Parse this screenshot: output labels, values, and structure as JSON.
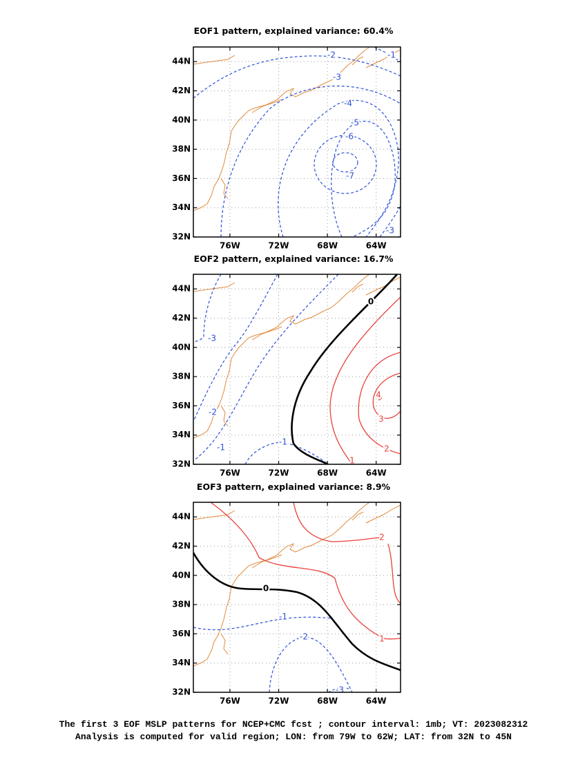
{
  "panels": [
    {
      "title": "EOF1 pattern, explained variance: 60.4%",
      "contours": [
        {
          "value": -1
        },
        {
          "value": -2
        },
        {
          "value": -3
        },
        {
          "value": -4
        },
        {
          "value": -5
        },
        {
          "value": -6
        },
        {
          "value": -7
        }
      ]
    },
    {
      "title": "EOF2 pattern, explained variance: 16.7%",
      "contours": [
        {
          "value": -3
        },
        {
          "value": -2
        },
        {
          "value": -1
        },
        {
          "value": 0
        },
        {
          "value": 1
        },
        {
          "value": 2
        },
        {
          "value": 3
        },
        {
          "value": 4
        }
      ]
    },
    {
      "title": "EOF3 pattern, explained variance: 8.9%",
      "contours": [
        {
          "value": -3
        },
        {
          "value": -2
        },
        {
          "value": -1
        },
        {
          "value": 0
        },
        {
          "value": 1
        },
        {
          "value": 2
        }
      ]
    }
  ],
  "lon_range": [
    -79,
    -62
  ],
  "lat_range": [
    32,
    45
  ],
  "lon_ticks": [
    {
      "value": -76,
      "label": "76W"
    },
    {
      "value": -72,
      "label": "72W"
    },
    {
      "value": -68,
      "label": "68W"
    },
    {
      "value": -64,
      "label": "64W"
    }
  ],
  "lat_ticks": [
    {
      "value": 32,
      "label": "32N"
    },
    {
      "value": 34,
      "label": "34N"
    },
    {
      "value": 36,
      "label": "36N"
    },
    {
      "value": 38,
      "label": "38N"
    },
    {
      "value": 40,
      "label": "40N"
    },
    {
      "value": 42,
      "label": "42N"
    },
    {
      "value": 44,
      "label": "44N"
    }
  ],
  "caption": [
    "The first 3 EOF MSLP patterns for NCEP+CMC fcst ; contour interval: 1mb; VT: 2023082312",
    "Analysis is computed for valid region; LON: from 79W to 62W; LAT: from 32N to 45N"
  ]
}
